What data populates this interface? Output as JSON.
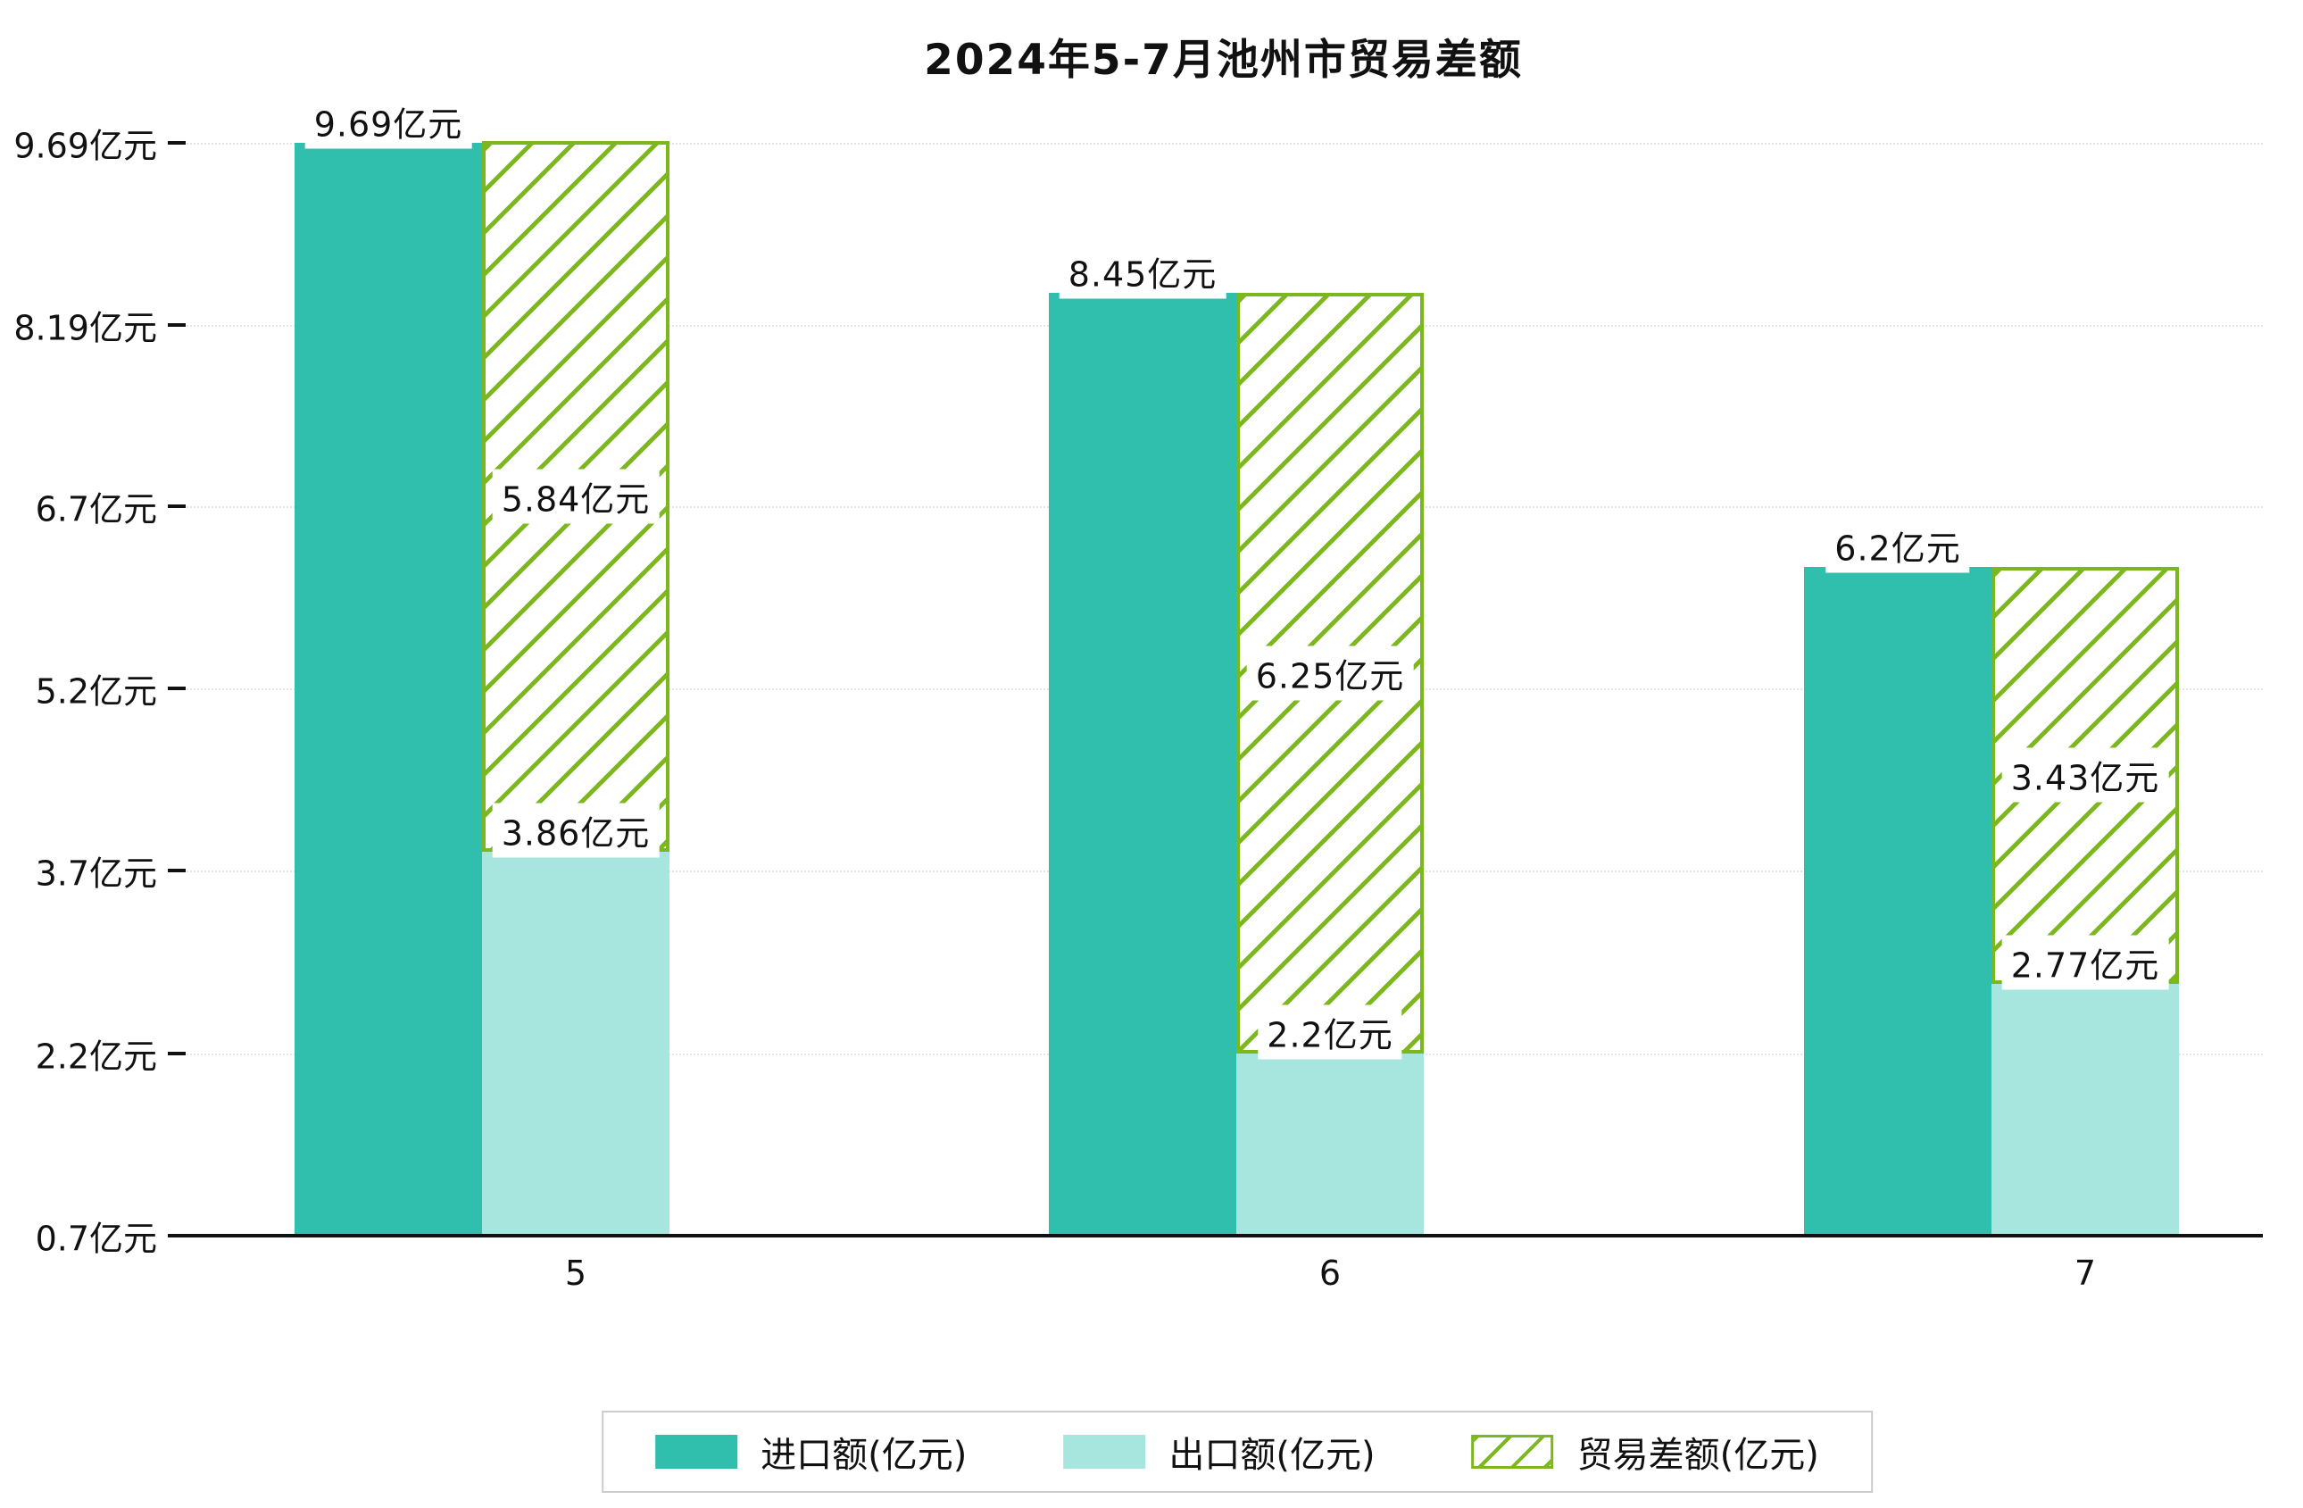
{
  "title": "2024年5-7月池州市贸易差额",
  "chart_data": {
    "type": "bar",
    "title": "2024年5-7月池州市贸易差额",
    "categories": [
      "5",
      "6",
      "7"
    ],
    "series": [
      {
        "name": "进口额(亿元)",
        "values": [
          9.69,
          8.45,
          6.2
        ]
      },
      {
        "name": "出口额(亿元)",
        "values": [
          3.86,
          2.2,
          2.77
        ]
      },
      {
        "name": "贸易差额(亿元)",
        "values": [
          5.84,
          6.25,
          3.43
        ]
      }
    ],
    "stacking": "贸易差额 bar is stacked on top of 出口额 bar; 出口额+贸易差额=进口额",
    "bar_labels": {
      "import": [
        "9.69亿元",
        "8.45亿元",
        "6.2亿元"
      ],
      "export": [
        "3.86亿元",
        "2.2亿元",
        "2.77亿元"
      ],
      "balance": [
        "5.84亿元",
        "6.25亿元",
        "3.43亿元"
      ]
    },
    "yticks": {
      "values": [
        0.7,
        2.2,
        3.7,
        5.2,
        6.7,
        8.19,
        9.69
      ],
      "labels": [
        "0.7亿元",
        "2.2亿元",
        "3.7亿元",
        "5.2亿元",
        "6.7亿元",
        "8.19亿元",
        "9.69亿元"
      ]
    },
    "ylim": [
      0.7,
      9.85
    ],
    "xlabel": "",
    "ylabel": "",
    "grid": "horizontal-dotted",
    "hatch": "diagonal-forward-slash",
    "legend": {
      "position": "bottom",
      "items": [
        "进口额(亿元)",
        "出口额(亿元)",
        "贸易差额(亿元)"
      ]
    },
    "colors": {
      "import": "#2fbfac",
      "export": "#a6e6de",
      "balance": "#7cb71e",
      "grid": "#e4e4e4",
      "axis": "#111111",
      "text": "#111111",
      "legend_border": "#cccccc"
    }
  }
}
